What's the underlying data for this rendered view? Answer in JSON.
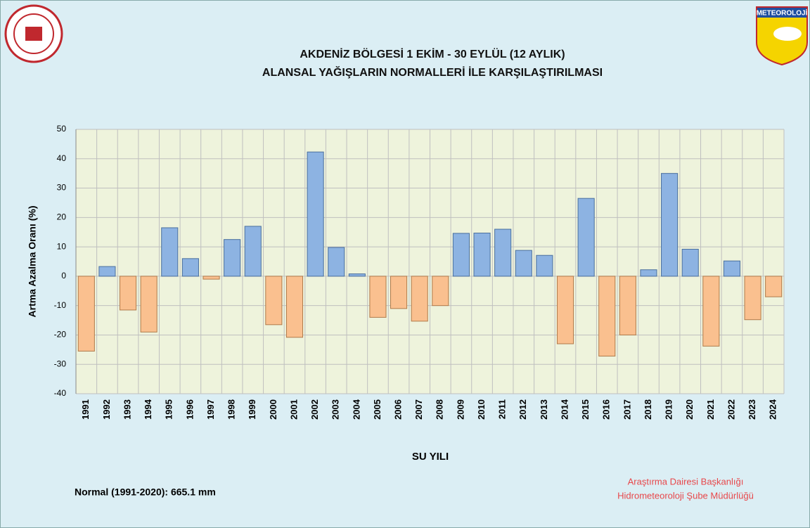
{
  "chart_data": {
    "type": "bar",
    "title": [
      "AKDENİZ BÖLGESİ  1 EKİM - 30 EYLÜL (12 AYLIK)",
      "ALANSAL YAĞIŞLARIN NORMALLERİ İLE KARŞILAŞTIRILMASI"
    ],
    "y_label": "Artma Azalma Oranı (%)",
    "x_label": "SU YILI",
    "note": "Normal (1991-2020):  665.1 mm",
    "credits": [
      "Araştırma Dairesi Başkanlığı",
      "Hidrometeoroloji Şube Müdürlüğü"
    ],
    "logo_text": "METEOROLOJİ",
    "categories": [
      "1991",
      "1992",
      "1993",
      "1994",
      "1995",
      "1996",
      "1997",
      "1998",
      "1999",
      "2000",
      "2001",
      "2002",
      "2003",
      "2004",
      "2005",
      "2006",
      "2007",
      "2008",
      "2009",
      "2010",
      "2011",
      "2012",
      "2013",
      "2014",
      "2015",
      "2016",
      "2017",
      "2018",
      "2019",
      "2020",
      "2021",
      "2022",
      "2023",
      "2024"
    ],
    "values": [
      -25.5,
      3.3,
      -11.5,
      -19,
      16.5,
      6,
      -1,
      12.5,
      17,
      -16.5,
      -20.8,
      42.3,
      9.8,
      0.8,
      -14,
      -11,
      -15.3,
      -10,
      14.6,
      14.7,
      16,
      8.8,
      7.1,
      -23,
      26.5,
      -27.2,
      -20,
      2.2,
      35,
      9.2,
      -23.8,
      5.2,
      -14.8,
      -7
    ],
    "positive_color": "#8db3e2",
    "negative_color": "#fac08f",
    "ylim": [
      -40,
      50
    ],
    "yticks": [
      -40,
      -30,
      -20,
      -10,
      0,
      10,
      20,
      30,
      40,
      50
    ],
    "grid": true
  }
}
